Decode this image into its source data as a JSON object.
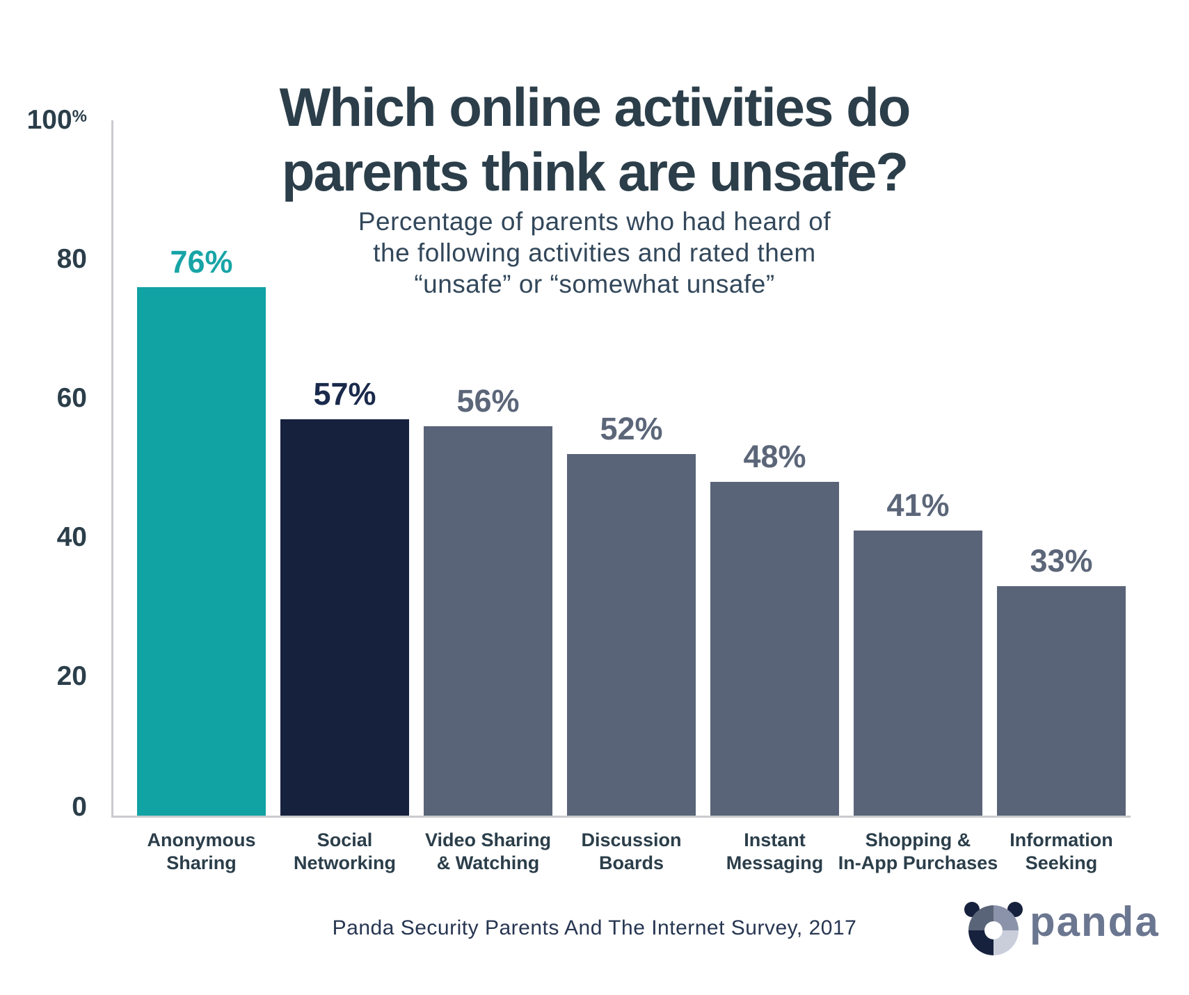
{
  "title": {
    "line1": "Which online activities do",
    "line2": "parents think are unsafe?"
  },
  "subtitle": {
    "line1": "Percentage of parents who had heard of",
    "line2": "the following activities and rated them",
    "line3": "“unsafe” or “somewhat unsafe”"
  },
  "chart_data": {
    "type": "bar",
    "title": "Which online activities do parents think are unsafe?",
    "subtitle": "Percentage of parents who had heard of the following activities and rated them “unsafe” or “somewhat unsafe”",
    "categories": [
      "Anonymous Sharing",
      "Social Networking",
      "Video Sharing & Watching",
      "Discussion Boards",
      "Instant Messaging",
      "Shopping & In-App Purchases",
      "Information Seeking"
    ],
    "category_lines": [
      {
        "line1": "Anonymous",
        "line2": "Sharing"
      },
      {
        "line1": "Social",
        "line2": "Networking"
      },
      {
        "line1": "Video Sharing",
        "line2": "& Watching"
      },
      {
        "line1": "Discussion",
        "line2": "Boards"
      },
      {
        "line1": "Instant",
        "line2": "Messaging"
      },
      {
        "line1": "Shopping &",
        "line2": "In-App Purchases"
      },
      {
        "line1": "Information",
        "line2": "Seeking"
      }
    ],
    "values": [
      76,
      57,
      56,
      52,
      48,
      41,
      33
    ],
    "display_values": [
      "76%",
      "57%",
      "56%",
      "52%",
      "48%",
      "41%",
      "33%"
    ],
    "bar_colors": [
      "#11A2A3",
      "#16213D",
      "#5A6478",
      "#5A6478",
      "#5A6478",
      "#5A6478",
      "#5A6478"
    ],
    "label_colors": [
      "#18A4A6",
      "#1A2A4C",
      "#5C6679",
      "#5C6679",
      "#5C6679",
      "#5C6679",
      "#5C6679"
    ],
    "ylabel": "",
    "xlabel": "",
    "ylim": [
      0,
      100
    ],
    "yticks": [
      0,
      20,
      40,
      60,
      80,
      100
    ],
    "ytick_labels": [
      {
        "num": "100",
        "suffix": "%"
      },
      {
        "num": "80",
        "suffix": ""
      },
      {
        "num": "60",
        "suffix": ""
      },
      {
        "num": "40",
        "suffix": ""
      },
      {
        "num": "20",
        "suffix": ""
      },
      {
        "num": "0",
        "suffix": ""
      }
    ],
    "grid": false,
    "legend": false,
    "source": "Panda Security Parents And The Internet Survey, 2017"
  },
  "footer": {
    "source": "Panda Security Parents And The Internet Survey, 2017"
  },
  "logo": {
    "wordmark": "panda",
    "colors": {
      "ear": "#16213D",
      "quadrant_top_left": "#5A6478",
      "quadrant_top_right": "#8A93A9",
      "quadrant_bottom_left": "#16213D",
      "quadrant_bottom_right": "#C9CEDA",
      "wordmark": "#6B7690"
    }
  },
  "colors": {
    "accent_teal": "#11A2A3",
    "navy": "#16213D",
    "slate": "#5A6478",
    "heading": "#2B3E4A",
    "axis_line": "#C9CBCE"
  }
}
